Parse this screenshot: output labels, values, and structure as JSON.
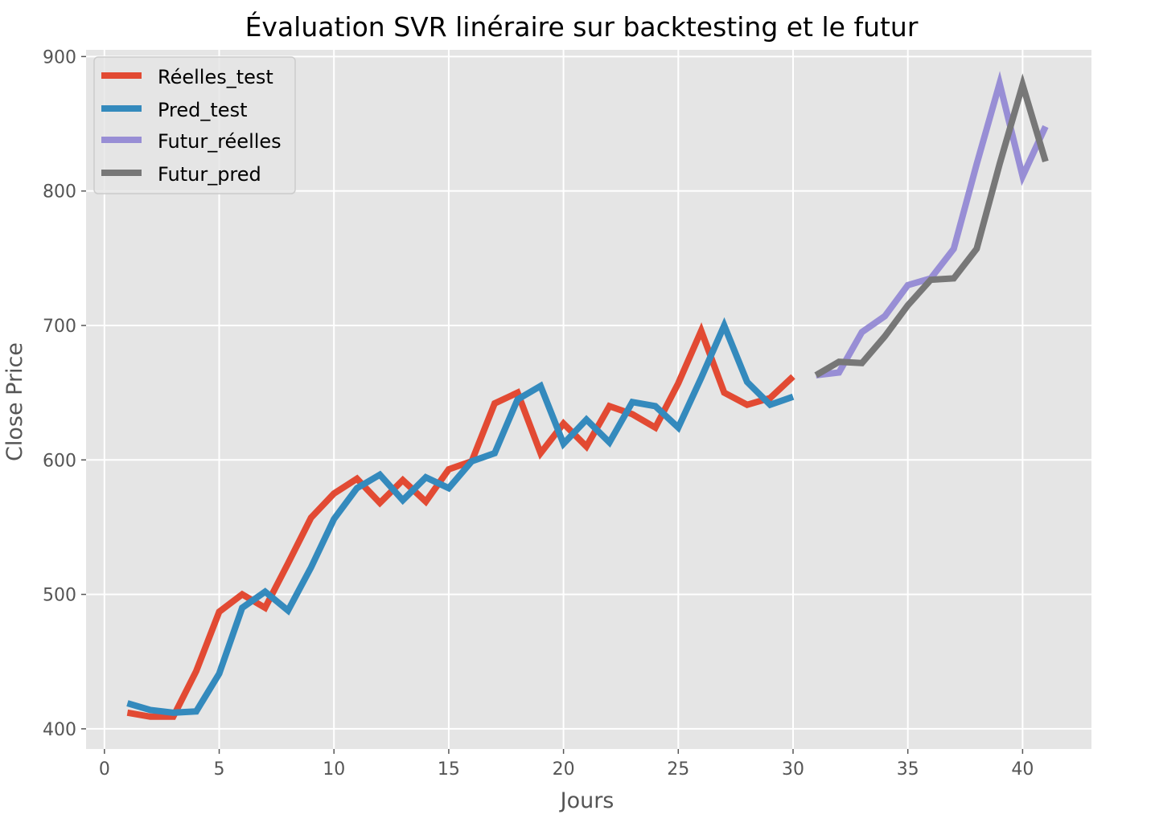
{
  "chart_data": {
    "type": "line",
    "title": "Évaluation SVR linéraire sur backtesting et le futur",
    "xlabel": "Jours",
    "ylabel": "Close Price",
    "xlim": [
      -0.8,
      43
    ],
    "ylim": [
      385,
      905
    ],
    "x_ticks": [
      0,
      5,
      10,
      15,
      20,
      25,
      30,
      35,
      40
    ],
    "y_ticks": [
      400,
      500,
      600,
      700,
      800,
      900
    ],
    "grid": true,
    "legend_position": "top-left",
    "series": [
      {
        "name": "Réelles_test",
        "color": "#E24A33",
        "x": [
          1,
          2,
          3,
          4,
          5,
          6,
          7,
          8,
          9,
          10,
          11,
          12,
          13,
          14,
          15,
          16,
          17,
          18,
          19,
          20,
          21,
          22,
          23,
          24,
          25,
          26,
          27,
          28,
          29,
          30
        ],
        "y": [
          412,
          409,
          409,
          443,
          487,
          500,
          490,
          523,
          557,
          575,
          586,
          568,
          585,
          569,
          593,
          599,
          642,
          650,
          605,
          627,
          610,
          640,
          634,
          624,
          657,
          696,
          650,
          641,
          646,
          662
        ]
      },
      {
        "name": "Pred_test",
        "color": "#348ABD",
        "x": [
          1,
          2,
          3,
          4,
          5,
          6,
          7,
          8,
          9,
          10,
          11,
          12,
          13,
          14,
          15,
          16,
          17,
          18,
          19,
          20,
          21,
          22,
          23,
          24,
          25,
          26,
          27,
          28,
          29,
          30
        ],
        "y": [
          419,
          414,
          412,
          413,
          441,
          490,
          502,
          488,
          520,
          556,
          579,
          589,
          570,
          587,
          579,
          599,
          605,
          645,
          655,
          612,
          630,
          613,
          643,
          640,
          624,
          661,
          700,
          658,
          641,
          647
        ]
      },
      {
        "name": "Futur_réelles",
        "color": "#988ED5",
        "x": [
          31,
          32,
          33,
          34,
          35,
          36,
          37,
          38,
          39,
          40,
          41
        ],
        "y": [
          663,
          665,
          695,
          707,
          730,
          735,
          757,
          820,
          880,
          811,
          848
        ]
      },
      {
        "name": "Futur_pred",
        "color": "#777777",
        "x": [
          31,
          32,
          33,
          34,
          35,
          36,
          37,
          38,
          39,
          40,
          41
        ],
        "y": [
          663,
          673,
          672,
          692,
          715,
          734,
          735,
          757,
          820,
          879,
          822
        ]
      }
    ]
  }
}
